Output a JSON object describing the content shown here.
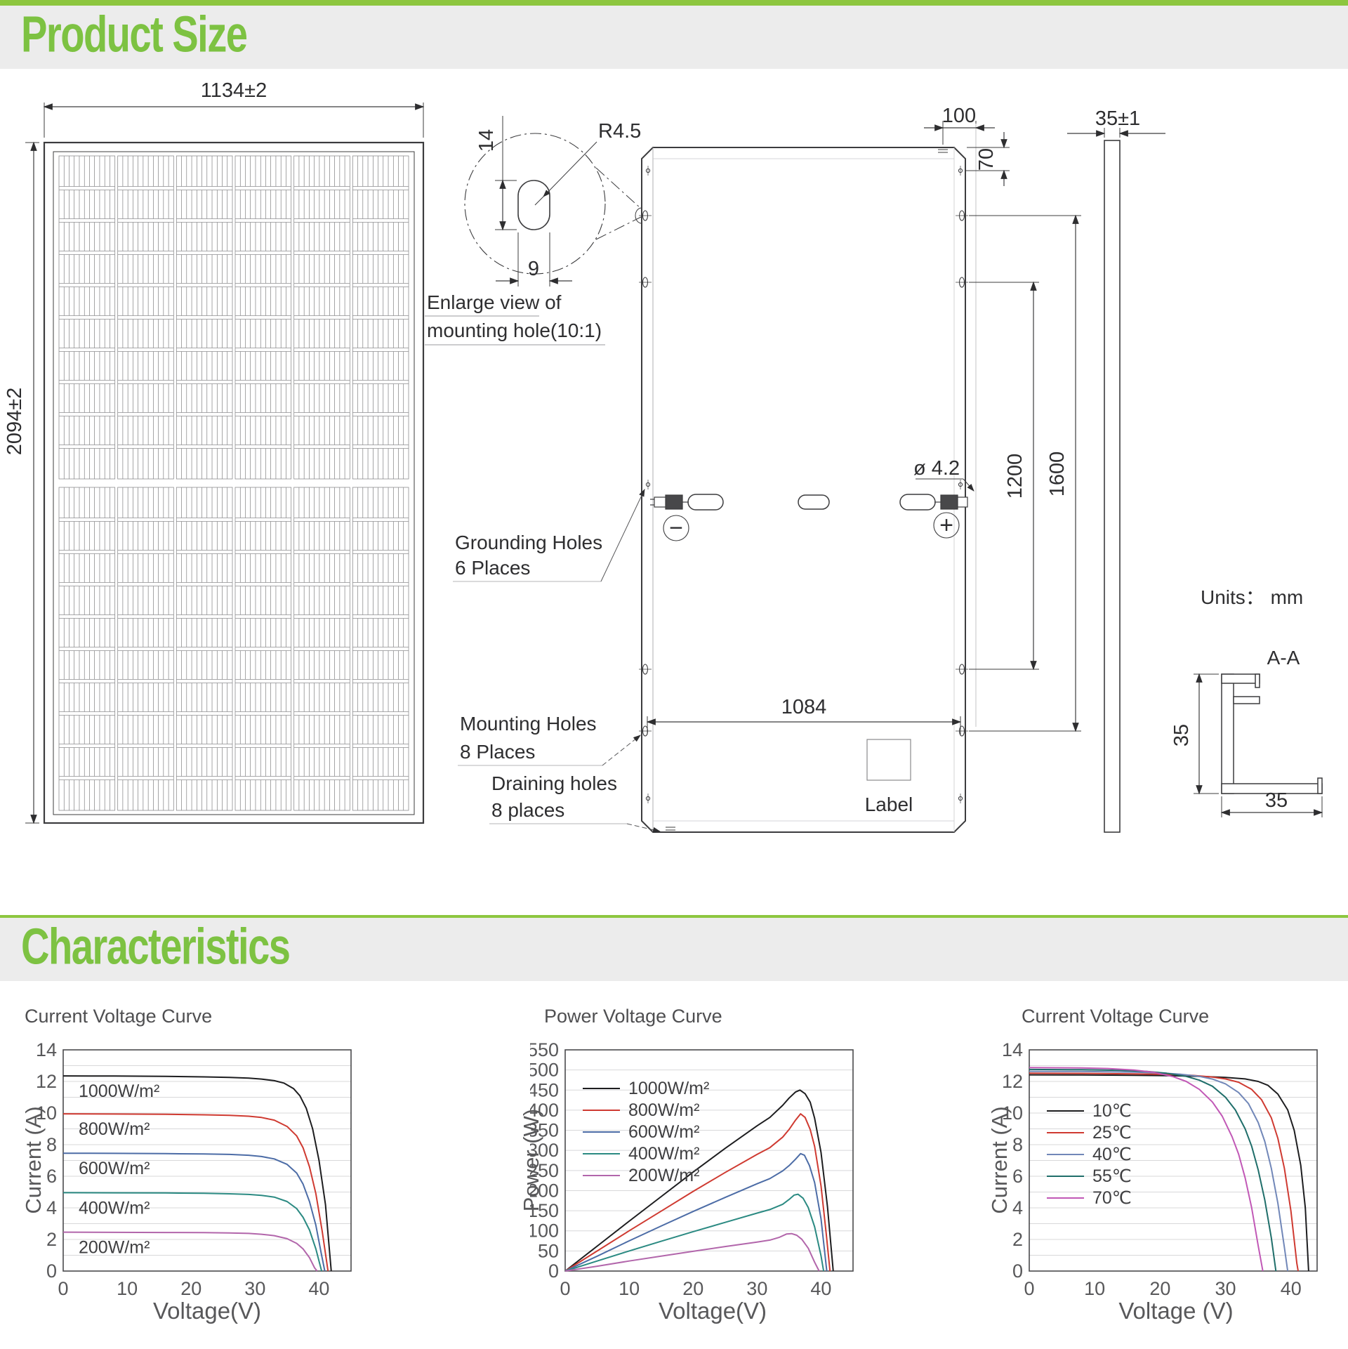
{
  "page": {
    "section1_title": "Product Size",
    "section2_title": "Characteristics",
    "units_label": "Units： mm"
  },
  "drawing": {
    "front": {
      "width_dim": "1134±2",
      "height_dim": "2094±2"
    },
    "enlarge": {
      "radius": "R4.5",
      "dim_h": "14",
      "dim_w": "9",
      "cap1": "Enlarge view of",
      "cap2": "mounting hole(10:1)"
    },
    "back": {
      "dim_100": "100",
      "dim_70": "70",
      "dia": "ø 4.2",
      "dim_1200": "1200",
      "dim_1600": "1600",
      "dim_1084": "1084",
      "label": "Label",
      "grounding1": "Grounding Holes",
      "grounding2": "6 Places",
      "mounting1": "Mounting Holes",
      "mounting2": "8 Places",
      "draining1": "Draining holes",
      "draining2": "8 places",
      "minus": "−",
      "plus": "+"
    },
    "side": {
      "dim": "35±1"
    },
    "section": {
      "title": "A-A",
      "dim_h": "35",
      "dim_w": "35"
    }
  },
  "chart_data": [
    {
      "type": "line",
      "title": "Current Voltage Curve",
      "xlabel": "Voltage(V)",
      "ylabel": "Current (A)",
      "xlim": [
        0,
        45
      ],
      "ylim": [
        0,
        14
      ],
      "xticks": [
        0,
        10,
        20,
        30,
        40
      ],
      "yticks": [
        0,
        2,
        4,
        6,
        8,
        10,
        12,
        14
      ],
      "grid_step": 1,
      "legend_position": "curve-labels",
      "series": [
        {
          "name": "1000W/m²",
          "color": "#1d1d1f",
          "points": [
            [
              0,
              12.35
            ],
            [
              8,
              12.34
            ],
            [
              16,
              12.32
            ],
            [
              22,
              12.29
            ],
            [
              26,
              12.26
            ],
            [
              29,
              12.21
            ],
            [
              31,
              12.15
            ],
            [
              33,
              12.05
            ],
            [
              34.5,
              11.9
            ],
            [
              36,
              11.55
            ],
            [
              37,
              11.1
            ],
            [
              38,
              10.3
            ],
            [
              39,
              9.0
            ],
            [
              40,
              7.0
            ],
            [
              41,
              4.2
            ],
            [
              41.9,
              0
            ]
          ]
        },
        {
          "name": "800W/m²",
          "color": "#cf3a31",
          "points": [
            [
              0,
              9.95
            ],
            [
              8,
              9.94
            ],
            [
              16,
              9.92
            ],
            [
              22,
              9.89
            ],
            [
              26,
              9.86
            ],
            [
              29,
              9.8
            ],
            [
              31,
              9.72
            ],
            [
              33,
              9.55
            ],
            [
              35,
              9.15
            ],
            [
              36.5,
              8.55
            ],
            [
              37.5,
              7.8
            ],
            [
              38.5,
              6.6
            ],
            [
              39.5,
              4.9
            ],
            [
              40.5,
              2.5
            ],
            [
              41.4,
              0
            ]
          ]
        },
        {
          "name": "600W/m²",
          "color": "#4c6ca6",
          "points": [
            [
              0,
              7.46
            ],
            [
              8,
              7.45
            ],
            [
              16,
              7.43
            ],
            [
              22,
              7.41
            ],
            [
              26,
              7.38
            ],
            [
              29,
              7.33
            ],
            [
              31,
              7.25
            ],
            [
              33,
              7.1
            ],
            [
              35,
              6.75
            ],
            [
              36.5,
              6.2
            ],
            [
              37.5,
              5.5
            ],
            [
              38.5,
              4.4
            ],
            [
              39.5,
              2.9
            ],
            [
              40.3,
              1.2
            ],
            [
              40.9,
              0
            ]
          ]
        },
        {
          "name": "400W/m²",
          "color": "#2b8a82",
          "points": [
            [
              0,
              4.96
            ],
            [
              8,
              4.95
            ],
            [
              16,
              4.94
            ],
            [
              22,
              4.92
            ],
            [
              26,
              4.89
            ],
            [
              29,
              4.85
            ],
            [
              31,
              4.79
            ],
            [
              33,
              4.68
            ],
            [
              35,
              4.4
            ],
            [
              36.5,
              3.95
            ],
            [
              37.5,
              3.4
            ],
            [
              38.5,
              2.6
            ],
            [
              39.5,
              1.4
            ],
            [
              40.4,
              0
            ]
          ]
        },
        {
          "name": "200W/m²",
          "color": "#b266ab",
          "points": [
            [
              0,
              2.46
            ],
            [
              8,
              2.45
            ],
            [
              16,
              2.44
            ],
            [
              22,
              2.43
            ],
            [
              26,
              2.41
            ],
            [
              29,
              2.38
            ],
            [
              31,
              2.33
            ],
            [
              33,
              2.24
            ],
            [
              35,
              2.05
            ],
            [
              36.5,
              1.75
            ],
            [
              37.5,
              1.4
            ],
            [
              38.5,
              0.85
            ],
            [
              39.3,
              0.2
            ],
            [
              39.7,
              0
            ]
          ]
        }
      ]
    },
    {
      "type": "line",
      "title": "Power Voltage Curve",
      "xlabel": "Voltage(V)",
      "ylabel": "Power (W)",
      "xlim": [
        0,
        45
      ],
      "ylim": [
        0,
        550
      ],
      "xticks": [
        0,
        10,
        20,
        30,
        40
      ],
      "yticks": [
        0,
        50,
        100,
        150,
        200,
        250,
        300,
        350,
        400,
        450,
        500,
        550
      ],
      "grid_step": 50,
      "legend_position": "top-left",
      "series": [
        {
          "name": "1000W/m²",
          "color": "#1d1d1f",
          "points": [
            [
              0,
              0
            ],
            [
              5,
              62
            ],
            [
              10,
              124
            ],
            [
              15,
              185
            ],
            [
              20,
              246
            ],
            [
              25,
              305
            ],
            [
              30,
              361
            ],
            [
              32,
              382
            ],
            [
              34,
              412
            ],
            [
              35,
              430
            ],
            [
              36,
              445
            ],
            [
              36.7,
              450
            ],
            [
              37.5,
              441
            ],
            [
              38.3,
              420
            ],
            [
              39,
              380
            ],
            [
              40,
              295
            ],
            [
              41,
              160
            ],
            [
              41.9,
              0
            ]
          ]
        },
        {
          "name": "800W/m²",
          "color": "#cf3a31",
          "points": [
            [
              0,
              0
            ],
            [
              5,
              50
            ],
            [
              10,
              100
            ],
            [
              15,
              149
            ],
            [
              20,
              198
            ],
            [
              25,
              245
            ],
            [
              30,
              290
            ],
            [
              32,
              307
            ],
            [
              34,
              333
            ],
            [
              35,
              352
            ],
            [
              36,
              375
            ],
            [
              36.8,
              391
            ],
            [
              37.5,
              382
            ],
            [
              38.3,
              352
            ],
            [
              39,
              310
            ],
            [
              40,
              212
            ],
            [
              40.8,
              95
            ],
            [
              41.4,
              0
            ]
          ]
        },
        {
          "name": "600W/m²",
          "color": "#4c6ca6",
          "points": [
            [
              0,
              0
            ],
            [
              5,
              37
            ],
            [
              10,
              75
            ],
            [
              15,
              112
            ],
            [
              20,
              148
            ],
            [
              25,
              183
            ],
            [
              30,
              217
            ],
            [
              32,
              230
            ],
            [
              34,
              249
            ],
            [
              35,
              262
            ],
            [
              36,
              278
            ],
            [
              36.8,
              292
            ],
            [
              37.4,
              288
            ],
            [
              38.2,
              262
            ],
            [
              39,
              220
            ],
            [
              40,
              130
            ],
            [
              40.9,
              0
            ]
          ]
        },
        {
          "name": "400W/m²",
          "color": "#2b8a82",
          "points": [
            [
              0,
              0
            ],
            [
              5,
              25
            ],
            [
              10,
              50
            ],
            [
              15,
              74
            ],
            [
              20,
              98
            ],
            [
              25,
              121
            ],
            [
              30,
              144
            ],
            [
              32,
              153
            ],
            [
              34,
              166
            ],
            [
              35,
              178
            ],
            [
              35.8,
              189
            ],
            [
              36.4,
              191
            ],
            [
              37.2,
              181
            ],
            [
              38,
              158
            ],
            [
              39,
              110
            ],
            [
              40,
              38
            ],
            [
              40.4,
              0
            ]
          ]
        },
        {
          "name": "200W/m²",
          "color": "#b266ab",
          "points": [
            [
              0,
              0
            ],
            [
              5,
              12
            ],
            [
              10,
              25
            ],
            [
              15,
              37
            ],
            [
              20,
              49
            ],
            [
              25,
              61
            ],
            [
              30,
              72
            ],
            [
              32,
              77
            ],
            [
              33.5,
              84
            ],
            [
              34.6,
              92
            ],
            [
              35.4,
              93
            ],
            [
              36.2,
              89
            ],
            [
              37,
              79
            ],
            [
              38,
              57
            ],
            [
              39,
              22
            ],
            [
              39.7,
              0
            ]
          ]
        }
      ]
    },
    {
      "type": "line",
      "title": "Current Voltage Curve",
      "xlabel": "Voltage (V)",
      "ylabel": "Current (A)",
      "xlim": [
        0,
        44
      ],
      "ylim": [
        0,
        14
      ],
      "xticks": [
        0,
        10,
        20,
        30,
        40
      ],
      "yticks": [
        0,
        2,
        4,
        6,
        8,
        10,
        12,
        14
      ],
      "grid_step": 1,
      "legend_position": "mid-left",
      "series": [
        {
          "name": "10℃",
          "color": "#1d1d1f",
          "points": [
            [
              0,
              12.42
            ],
            [
              8,
              12.41
            ],
            [
              16,
              12.39
            ],
            [
              22,
              12.36
            ],
            [
              26,
              12.32
            ],
            [
              30,
              12.26
            ],
            [
              33,
              12.16
            ],
            [
              35,
              12.0
            ],
            [
              36.5,
              11.75
            ],
            [
              38,
              11.2
            ],
            [
              39.5,
              10.2
            ],
            [
              40.5,
              8.9
            ],
            [
              41.5,
              6.7
            ],
            [
              42.2,
              4.0
            ],
            [
              42.7,
              0
            ]
          ]
        },
        {
          "name": "25℃",
          "color": "#cf3a31",
          "points": [
            [
              0,
              12.52
            ],
            [
              8,
              12.51
            ],
            [
              16,
              12.48
            ],
            [
              22,
              12.44
            ],
            [
              25,
              12.38
            ],
            [
              28,
              12.28
            ],
            [
              30,
              12.16
            ],
            [
              32,
              11.95
            ],
            [
              34,
              11.5
            ],
            [
              35.5,
              10.85
            ],
            [
              37,
              9.7
            ],
            [
              38,
              8.4
            ],
            [
              39,
              6.5
            ],
            [
              40,
              3.8
            ],
            [
              40.9,
              0.5
            ],
            [
              41.1,
              0
            ]
          ]
        },
        {
          "name": "40℃",
          "color": "#7187b8",
          "points": [
            [
              0,
              12.64
            ],
            [
              8,
              12.63
            ],
            [
              16,
              12.59
            ],
            [
              20,
              12.54
            ],
            [
              23,
              12.46
            ],
            [
              26,
              12.32
            ],
            [
              28,
              12.15
            ],
            [
              30,
              11.85
            ],
            [
              32,
              11.3
            ],
            [
              33.5,
              10.6
            ],
            [
              35,
              9.4
            ],
            [
              36,
              8.2
            ],
            [
              37,
              6.5
            ],
            [
              38,
              4.3
            ],
            [
              39,
              1.5
            ],
            [
              39.5,
              0
            ]
          ]
        },
        {
          "name": "55℃",
          "color": "#1f6e6a",
          "points": [
            [
              0,
              12.76
            ],
            [
              8,
              12.74
            ],
            [
              14,
              12.7
            ],
            [
              18,
              12.63
            ],
            [
              21,
              12.52
            ],
            [
              24,
              12.32
            ],
            [
              26,
              12.08
            ],
            [
              28,
              11.7
            ],
            [
              30,
              11.0
            ],
            [
              31.5,
              10.2
            ],
            [
              33,
              9.0
            ],
            [
              34,
              7.9
            ],
            [
              35,
              6.4
            ],
            [
              36,
              4.5
            ],
            [
              37,
              2.1
            ],
            [
              37.7,
              0
            ]
          ]
        },
        {
          "name": "70℃",
          "color": "#c158b6",
          "points": [
            [
              0,
              12.88
            ],
            [
              8,
              12.86
            ],
            [
              12,
              12.82
            ],
            [
              16,
              12.72
            ],
            [
              19,
              12.58
            ],
            [
              22,
              12.3
            ],
            [
              24,
              12.0
            ],
            [
              26,
              11.5
            ],
            [
              28,
              10.7
            ],
            [
              29.5,
              9.8
            ],
            [
              31,
              8.5
            ],
            [
              32,
              7.4
            ],
            [
              33,
              5.9
            ],
            [
              34,
              4.0
            ],
            [
              35,
              1.6
            ],
            [
              35.7,
              0
            ]
          ]
        }
      ]
    }
  ]
}
